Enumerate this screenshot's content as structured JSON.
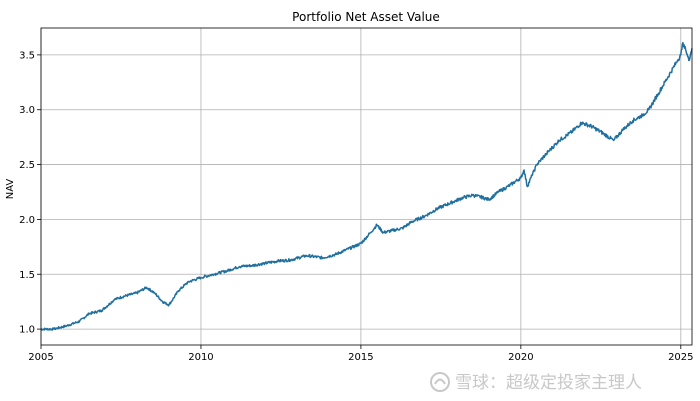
{
  "chart_data": {
    "type": "line",
    "title": "Portfolio Net Asset Value",
    "xlabel": "",
    "ylabel": "NAV",
    "xlim": [
      2005.0,
      2025.35
    ],
    "ylim": [
      0.855,
      3.745
    ],
    "grid": true,
    "line_color": "#1f6f9f",
    "x_ticks": [
      2005,
      2010,
      2015,
      2020,
      2025
    ],
    "x_tick_labels": [
      "2005",
      "2010",
      "2015",
      "2020",
      "2025"
    ],
    "y_ticks": [
      1.0,
      1.5,
      2.0,
      2.5,
      3.0,
      3.5
    ],
    "y_tick_labels": [
      "1.0",
      "1.5",
      "2.0",
      "2.5",
      "3.0",
      "3.5"
    ],
    "series": [
      {
        "x": [
          2005.0,
          2005.4,
          2005.8,
          2006.2,
          2006.5,
          2006.9,
          2007.3,
          2007.6,
          2008.0,
          2008.3,
          2008.55,
          2008.8,
          2009.0,
          2009.3,
          2009.6,
          2010.0,
          2010.4,
          2010.8,
          2011.2,
          2011.6,
          2012.0,
          2012.4,
          2012.8,
          2013.3,
          2013.8,
          2014.2,
          2014.6,
          2015.0,
          2015.3,
          2015.5,
          2015.7,
          2016.0,
          2016.3,
          2016.6,
          2017.0,
          2017.4,
          2017.8,
          2018.2,
          2018.5,
          2018.8,
          2019.0,
          2019.3,
          2019.6,
          2020.0,
          2020.1,
          2020.2,
          2020.35,
          2020.5,
          2020.8,
          2021.2,
          2021.6,
          2021.9,
          2022.2,
          2022.6,
          2022.9,
          2023.2,
          2023.5,
          2023.8,
          2024.0,
          2024.3,
          2024.6,
          2024.9,
          2025.0,
          2025.05,
          2025.15,
          2025.25,
          2025.35
        ],
        "y": [
          1.0,
          1.0,
          1.03,
          1.07,
          1.14,
          1.17,
          1.27,
          1.3,
          1.33,
          1.38,
          1.33,
          1.25,
          1.22,
          1.35,
          1.43,
          1.47,
          1.5,
          1.53,
          1.57,
          1.58,
          1.6,
          1.62,
          1.63,
          1.67,
          1.65,
          1.68,
          1.73,
          1.78,
          1.88,
          1.95,
          1.88,
          1.9,
          1.92,
          1.98,
          2.03,
          2.1,
          2.15,
          2.2,
          2.22,
          2.2,
          2.18,
          2.25,
          2.3,
          2.38,
          2.45,
          2.3,
          2.4,
          2.5,
          2.6,
          2.72,
          2.8,
          2.88,
          2.85,
          2.78,
          2.72,
          2.82,
          2.9,
          2.95,
          3.0,
          3.15,
          3.3,
          3.45,
          3.5,
          3.6,
          3.55,
          3.45,
          3.56
        ]
      }
    ]
  },
  "watermark": {
    "text": "雪球：超级定投家主理人",
    "icon": "snowball-logo-icon"
  }
}
